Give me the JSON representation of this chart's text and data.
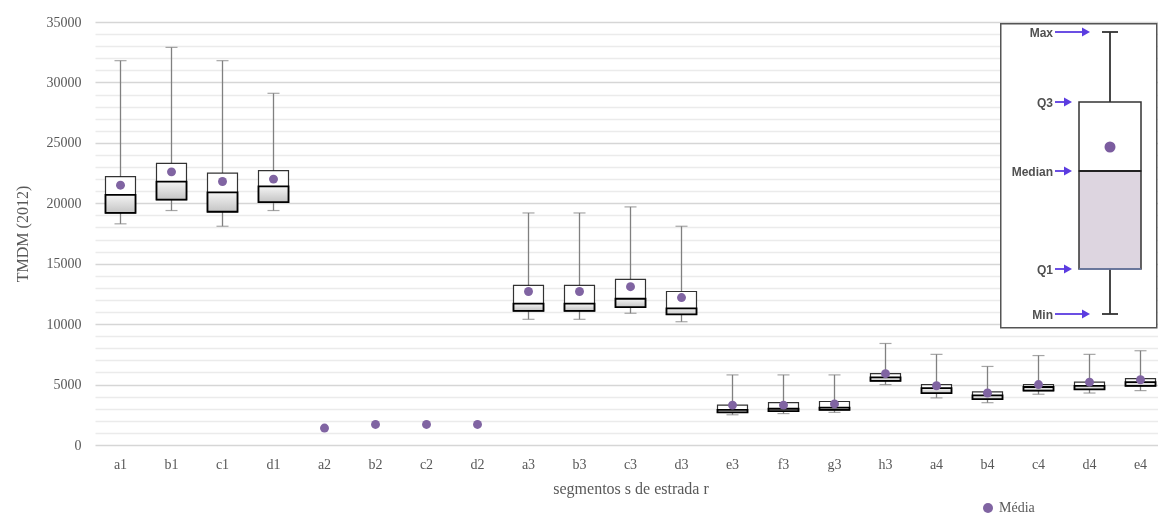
{
  "chart_data": {
    "type": "box",
    "ylabel": "TMDM (2012)",
    "xlabel": "segmentos s de estrada r",
    "categories": [
      "a1",
      "b1",
      "c1",
      "d1",
      "a2",
      "b2",
      "c2",
      "d2",
      "a3",
      "b3",
      "c3",
      "d3",
      "e3",
      "f3",
      "g3",
      "h3",
      "a4",
      "b4",
      "c4",
      "d4",
      "e4"
    ],
    "series": [
      {
        "type": "box",
        "color": "#000000",
        "boxes": [
          {
            "low": 18300,
            "q1": 19200,
            "median": 20700,
            "q3": 22200,
            "high": 31800
          },
          {
            "low": 19400,
            "q1": 20300,
            "median": 21800,
            "q3": 23300,
            "high": 32900
          },
          {
            "low": 18100,
            "q1": 19300,
            "median": 20900,
            "q3": 22500,
            "high": 31800
          },
          {
            "low": 19400,
            "q1": 20100,
            "median": 21400,
            "q3": 22700,
            "high": 29100
          },
          null,
          null,
          null,
          null,
          {
            "low": 10400,
            "q1": 11100,
            "median": 11700,
            "q3": 13200,
            "high": 19200
          },
          {
            "low": 10400,
            "q1": 11100,
            "median": 11700,
            "q3": 13200,
            "high": 19200
          },
          {
            "low": 10900,
            "q1": 11400,
            "median": 12100,
            "q3": 13700,
            "high": 19700
          },
          {
            "low": 10200,
            "q1": 10800,
            "median": 11300,
            "q3": 12700,
            "high": 18100
          },
          {
            "low": 2500,
            "q1": 2700,
            "median": 2900,
            "q3": 3300,
            "high": 5800
          },
          {
            "low": 2600,
            "q1": 2800,
            "median": 3000,
            "q3": 3500,
            "high": 5800
          },
          {
            "low": 2700,
            "q1": 2900,
            "median": 3100,
            "q3": 3600,
            "high": 5800
          },
          {
            "low": 5000,
            "q1": 5300,
            "median": 5600,
            "q3": 5900,
            "high": 8400
          },
          {
            "low": 3900,
            "q1": 4300,
            "median": 4700,
            "q3": 5000,
            "high": 7500
          },
          {
            "low": 3500,
            "q1": 3800,
            "median": 4100,
            "q3": 4400,
            "high": 6500
          },
          {
            "low": 4200,
            "q1": 4500,
            "median": 4800,
            "q3": 5000,
            "high": 7400
          },
          {
            "low": 4300,
            "q1": 4600,
            "median": 4900,
            "q3": 5200,
            "high": 7500
          },
          {
            "low": 4500,
            "q1": 4900,
            "median": 5200,
            "q3": 5500,
            "high": 7800
          }
        ]
      },
      {
        "type": "scatter",
        "name": "Média",
        "color": "#8064a2",
        "marker": "circle",
        "x": [
          "a1",
          "b1",
          "c1",
          "d1",
          "a2",
          "b2",
          "c2",
          "d2",
          "a3",
          "b3",
          "c3",
          "d3",
          "e3",
          "f3",
          "g3",
          "h3",
          "a4",
          "b4",
          "c4",
          "d4",
          "e4"
        ],
        "values": [
          21500,
          22600,
          21800,
          22000,
          1400,
          1700,
          1700,
          1700,
          12700,
          12700,
          13100,
          12200,
          3300,
          3300,
          3400,
          5900,
          4900,
          4300,
          5000,
          5200,
          5400
        ]
      }
    ],
    "ylim": [
      0,
      35000
    ],
    "yticks": [
      0,
      {
        "value": 1000,
        "label": null
      },
      {
        "value": 2000,
        "label": null
      },
      {
        "value": 3000,
        "label": null
      },
      {
        "value": 4000,
        "label": null
      },
      5000,
      {
        "value": 6000,
        "label": null
      },
      {
        "value": 7000,
        "label": null
      },
      {
        "value": 8000,
        "label": null
      },
      {
        "value": 9000,
        "label": null
      },
      10000,
      {
        "value": 11000,
        "label": null
      },
      {
        "value": 12000,
        "label": null
      },
      {
        "value": 13000,
        "label": null
      },
      {
        "value": 14000,
        "label": null
      },
      15000,
      {
        "value": 16000,
        "label": null
      },
      {
        "value": 17000,
        "label": null
      },
      {
        "value": 18000,
        "label": null
      },
      {
        "value": 19000,
        "label": null
      },
      20000,
      {
        "value": 21000,
        "label": null
      },
      {
        "value": 22000,
        "label": null
      },
      {
        "value": 23000,
        "label": null
      },
      {
        "value": 24000,
        "label": null
      },
      25000,
      {
        "value": 26000,
        "label": null
      },
      {
        "value": 27000,
        "label": null
      },
      {
        "value": 28000,
        "label": null
      },
      {
        "value": 29000,
        "label": null
      },
      30000,
      {
        "value": 31000,
        "label": null
      },
      {
        "value": 32000,
        "label": null
      },
      {
        "value": 33000,
        "label": null
      },
      {
        "value": 34000,
        "label": null
      },
      35000
    ],
    "grid": "y",
    "legend": "bottom right",
    "annotations": [
      "Max",
      "Q3",
      "Median",
      "Q1",
      "Min"
    ]
  }
}
